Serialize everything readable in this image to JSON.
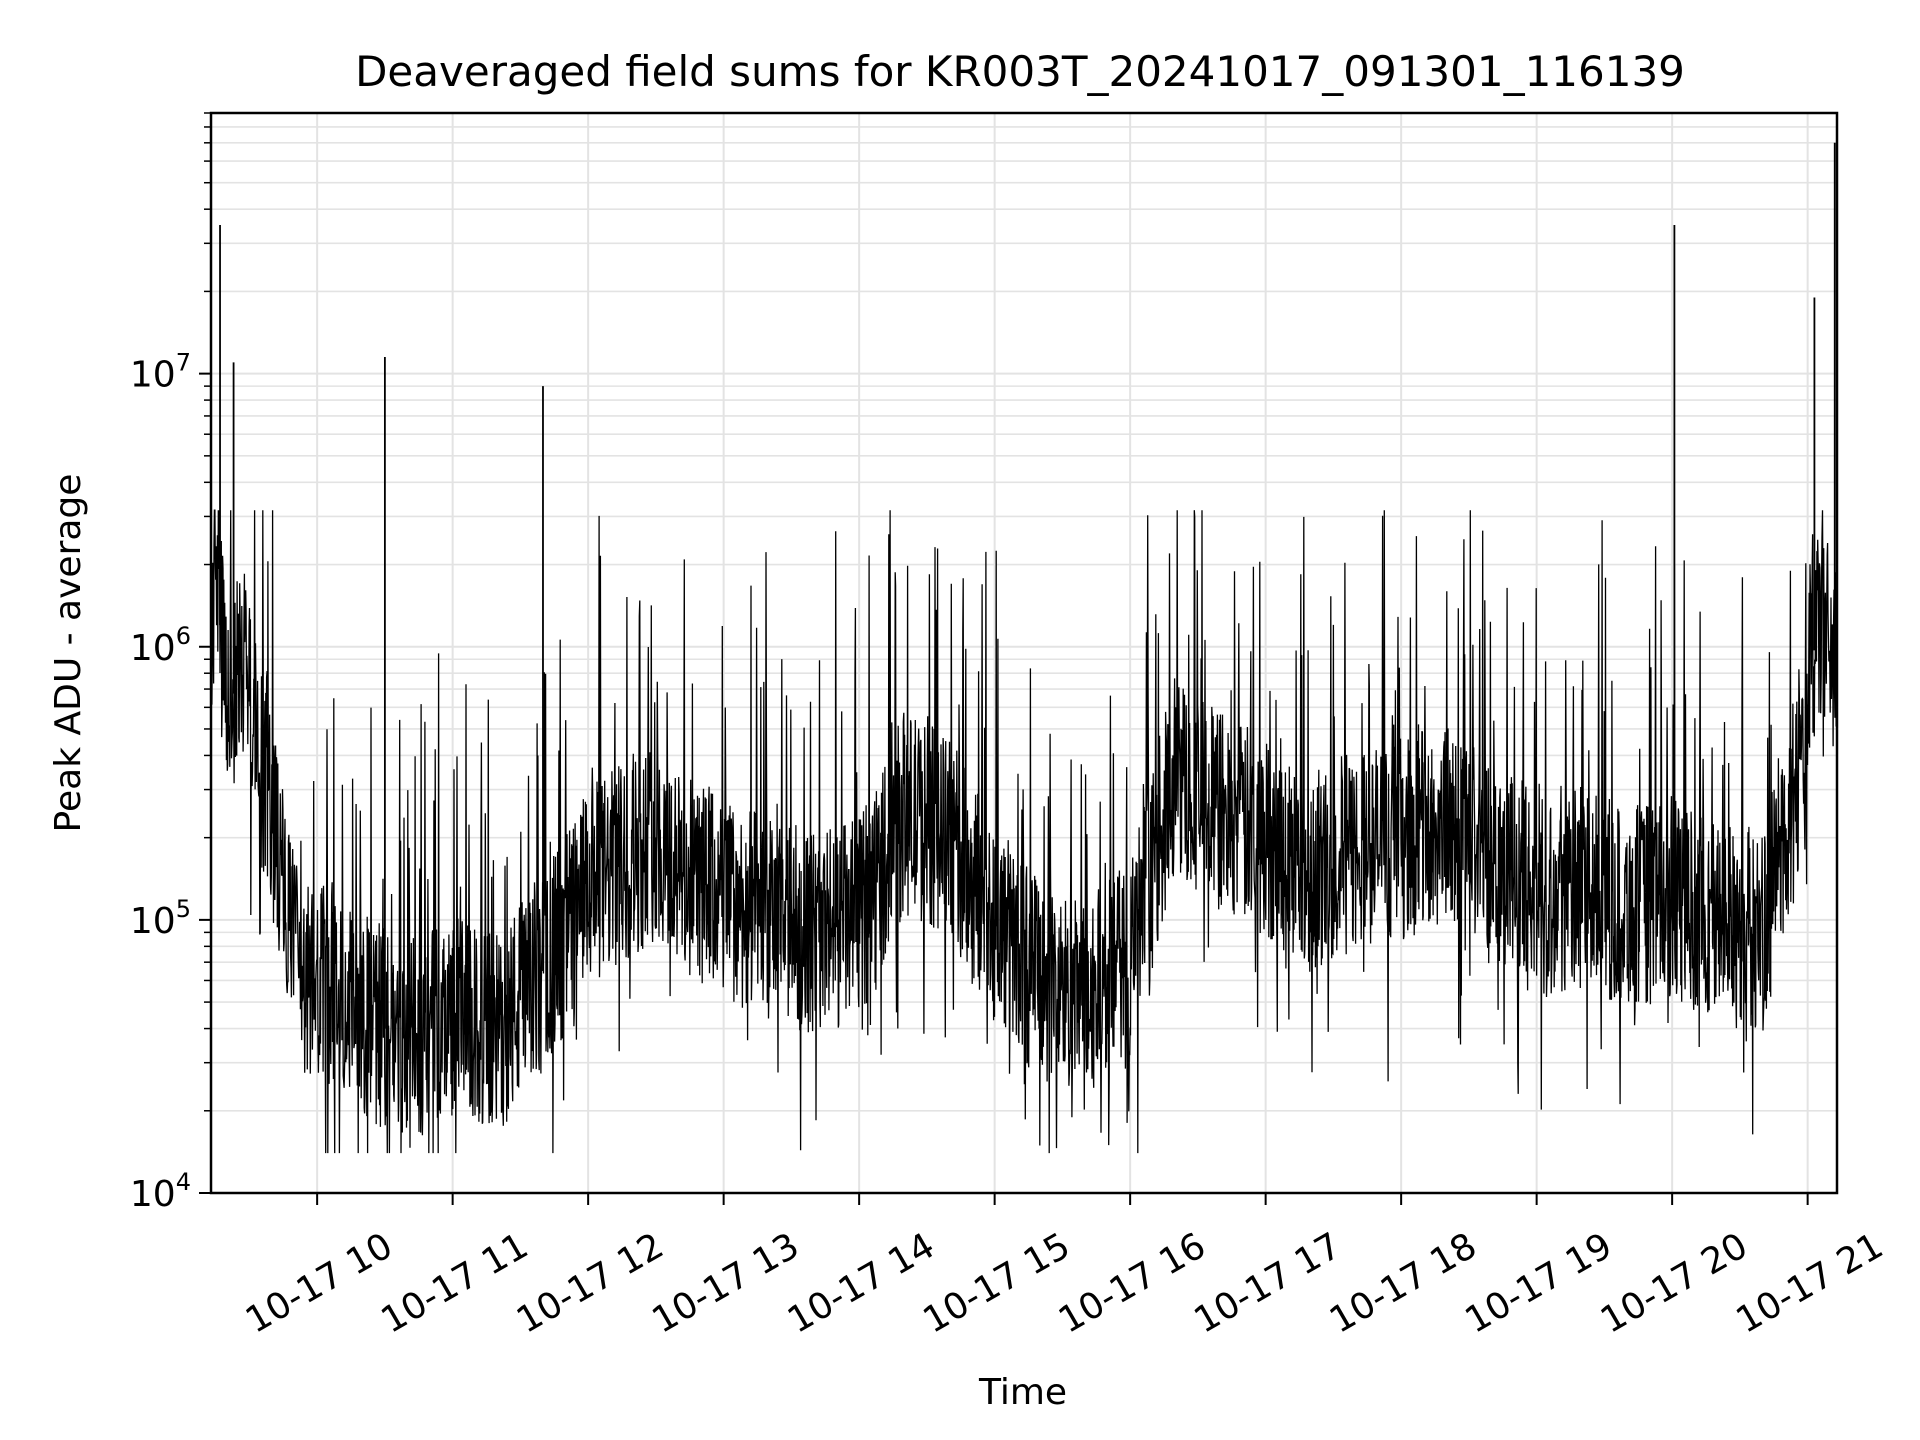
{
  "chart_data": {
    "type": "line",
    "title": "Deaveraged field sums for KR003T_20241017_091301_116139",
    "xlabel": "Time",
    "ylabel": "Peak ADU - average",
    "yscale": "log",
    "ylim": [
      10000,
      90000000
    ],
    "xlim": [
      "2024-10-17 09:13",
      "2024-10-17 21:13"
    ],
    "grid": true,
    "line_color": "#000000",
    "x_ticks": [
      "10-17 10",
      "10-17 11",
      "10-17 12",
      "10-17 13",
      "10-17 14",
      "10-17 15",
      "10-17 16",
      "10-17 17",
      "10-17 18",
      "10-17 19",
      "10-17 20",
      "10-17 21"
    ],
    "y_ticks": [
      {
        "value": 10000,
        "base": "10",
        "exp": "4"
      },
      {
        "value": 100000,
        "base": "10",
        "exp": "5"
      },
      {
        "value": 1000000,
        "base": "10",
        "exp": "6"
      },
      {
        "value": 10000000,
        "base": "10",
        "exp": "7"
      }
    ],
    "series": [
      {
        "x": [
          "09:13",
          "09:15",
          "09:17",
          "09:20",
          "09:24",
          "09:28",
          "09:32",
          "09:40",
          "09:48",
          "09:52",
          "10:00",
          "10:10",
          "10:20",
          "10:30",
          "10:40",
          "10:50",
          "11:00",
          "11:10",
          "11:20",
          "11:30",
          "11:40",
          "11:50",
          "12:00",
          "12:15",
          "12:30",
          "12:40",
          "13:00",
          "13:20",
          "13:40",
          "14:00",
          "14:20",
          "14:40",
          "15:00",
          "15:20",
          "15:40",
          "16:00",
          "16:20",
          "16:40",
          "17:00",
          "17:20",
          "17:40",
          "18:00",
          "18:20",
          "18:40",
          "19:00",
          "19:20",
          "19:40",
          "20:00",
          "20:20",
          "20:40",
          "20:55",
          "21:05",
          "21:10",
          "21:13"
        ],
        "y": [
          700000,
          3000000,
          1200000,
          600000,
          700000,
          1000000,
          500000,
          250000,
          90000,
          60000,
          55000,
          60000,
          45000,
          40000,
          35000,
          40000,
          45000,
          40000,
          38000,
          50000,
          65000,
          90000,
          130000,
          160000,
          200000,
          150000,
          120000,
          100000,
          90000,
          100000,
          250000,
          200000,
          100000,
          60000,
          50000,
          70000,
          350000,
          250000,
          200000,
          150000,
          180000,
          200000,
          220000,
          180000,
          120000,
          130000,
          110000,
          120000,
          100000,
          90000,
          300000,
          1300000,
          1000000,
          900000
        ]
      }
    ],
    "spikes": [
      {
        "x": "09:17",
        "y": 35000000
      },
      {
        "x": "09:23",
        "y": 11000000
      },
      {
        "x": "10:30",
        "y": 11500000
      },
      {
        "x": "11:40",
        "y": 9000000
      },
      {
        "x": "20:01",
        "y": 35000000
      },
      {
        "x": "21:03",
        "y": 19000000
      },
      {
        "x": "21:12",
        "y": 70000000
      }
    ]
  }
}
